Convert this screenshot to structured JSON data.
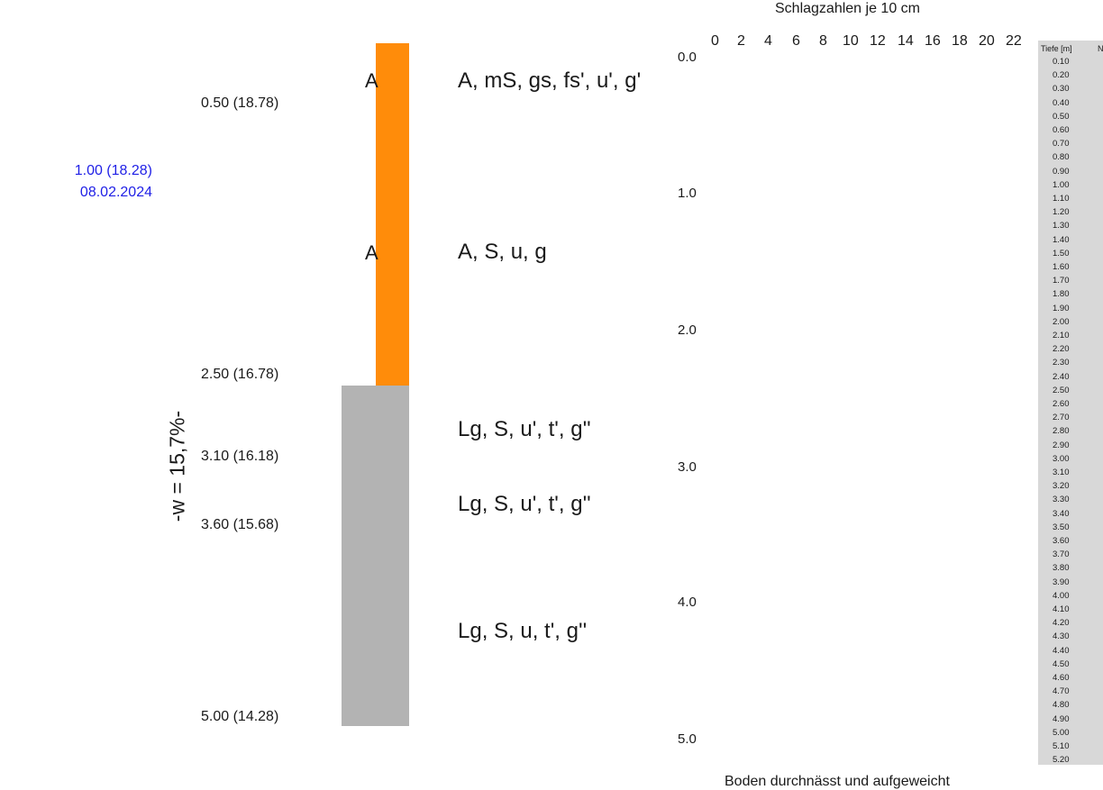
{
  "layers": [
    {
      "from": 0.0,
      "to": 2.5,
      "color": "#ff8c0a",
      "kind": "fill"
    },
    {
      "from": 2.5,
      "to": 5.0,
      "color": "#b3b3b3",
      "kind": "natural"
    }
  ],
  "depth_labels": [
    "0.50 (18.78)",
    "2.50 (16.78)",
    "3.10 (16.18)",
    "3.60 (15.68)",
    "5.00 (14.28)"
  ],
  "groundwater": {
    "line1": "1.00 (18.28)",
    "line2": "08.02.2024",
    "color": "#1f1fe6"
  },
  "water_content": "-w = 15,7%-",
  "layer_codes": [
    "A",
    "A"
  ],
  "descriptions": [
    "A, mS, gs, fs', u', g'",
    "A, S, u, g",
    "Lg, S, u', t', g''",
    "Lg, S, u', t', g''",
    "Lg, S, u, t', g''"
  ],
  "chart": {
    "title": "Schlagzahlen je 10 cm",
    "x_ticks": [
      "0",
      "2",
      "4",
      "6",
      "8",
      "10",
      "12",
      "14",
      "16",
      "18",
      "20",
      "22"
    ],
    "y_ticks": [
      "0.0",
      "1.0",
      "2.0",
      "3.0",
      "4.0",
      "5.0"
    ],
    "caption": "Boden durchnässt und aufgeweicht"
  },
  "table": {
    "header_depth": "Tiefe [m]",
    "header_n": "N",
    "rows": [
      "0.10",
      "0.20",
      "0.30",
      "0.40",
      "0.50",
      "0.60",
      "0.70",
      "0.80",
      "0.90",
      "1.00",
      "1.10",
      "1.20",
      "1.30",
      "1.40",
      "1.50",
      "1.60",
      "1.70",
      "1.80",
      "1.90",
      "2.00",
      "2.10",
      "2.20",
      "2.30",
      "2.40",
      "2.50",
      "2.60",
      "2.70",
      "2.80",
      "2.90",
      "3.00",
      "3.10",
      "3.20",
      "3.30",
      "3.40",
      "3.50",
      "3.60",
      "3.70",
      "3.80",
      "3.90",
      "4.00",
      "4.10",
      "4.20",
      "4.30",
      "4.40",
      "4.50",
      "4.60",
      "4.70",
      "4.80",
      "4.90",
      "5.00",
      "5.10",
      "5.20"
    ]
  }
}
